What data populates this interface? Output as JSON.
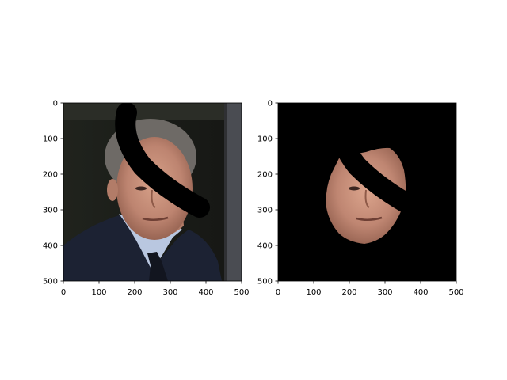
{
  "chart_data": [
    {
      "type": "image",
      "content": "photo of a man in a dark suit and tie, face partly covered by a black curved stroke",
      "xlim": [
        0,
        500
      ],
      "ylim": [
        500,
        0
      ],
      "xticks": [
        "0",
        "100",
        "200",
        "300",
        "400",
        "500"
      ],
      "yticks": [
        "0",
        "100",
        "200",
        "300",
        "400",
        "500"
      ]
    },
    {
      "type": "image",
      "content": "segmented face region on black background, same black curved stroke",
      "xlim": [
        0,
        500
      ],
      "ylim": [
        500,
        0
      ],
      "xticks": [
        "0",
        "100",
        "200",
        "300",
        "400",
        "500"
      ],
      "yticks": [
        "0",
        "100",
        "200",
        "300",
        "400",
        "500"
      ]
    }
  ],
  "colors": {
    "axis": "#000000",
    "background_masked": "#000000"
  }
}
